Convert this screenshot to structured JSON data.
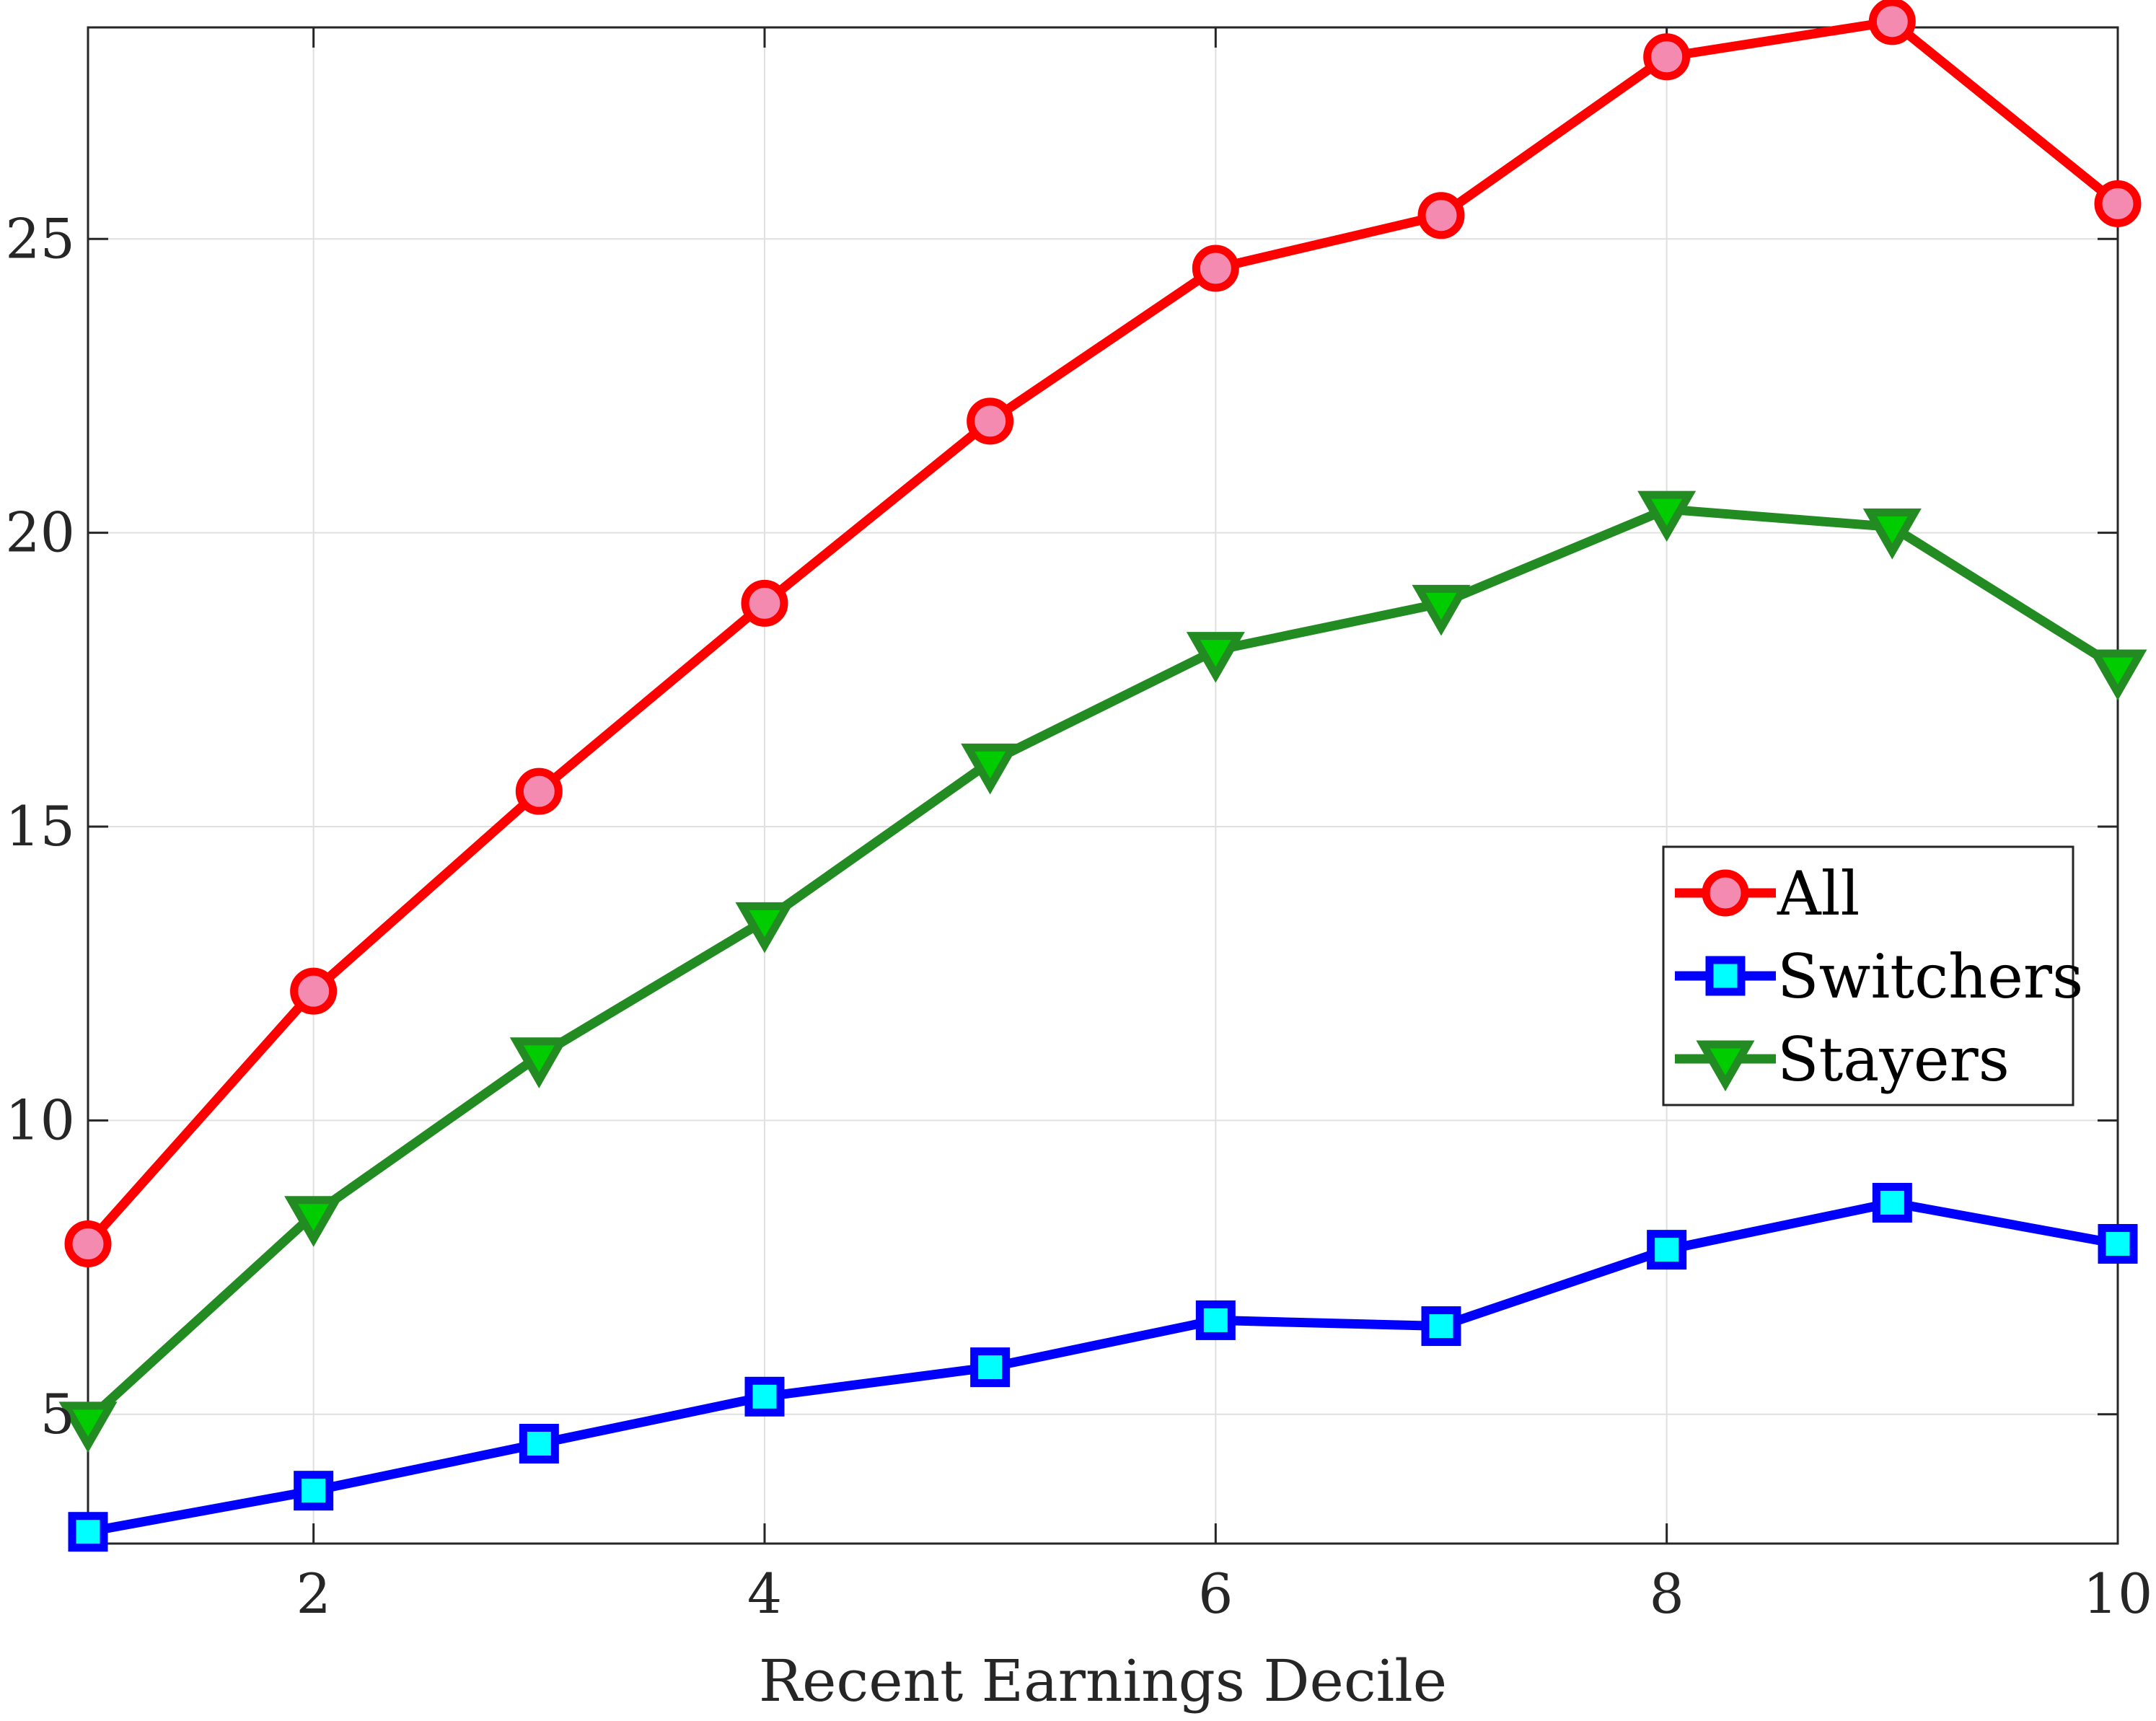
{
  "chart_data": {
    "type": "line",
    "xlabel": "Recent Earnings Decile",
    "ylabel": "",
    "xlim": [
      1,
      10
    ],
    "ylim": [
      2.8,
      28.6
    ],
    "xticks": [
      2,
      4,
      6,
      8,
      10
    ],
    "yticks": [
      5,
      10,
      15,
      20,
      25
    ],
    "grid": true,
    "legend_position": "center-right",
    "x": [
      1,
      2,
      3,
      4,
      5,
      6,
      7,
      8,
      9,
      10
    ],
    "series": [
      {
        "name": "All",
        "values": [
          7.9,
          12.2,
          15.6,
          18.8,
          21.9,
          24.5,
          25.4,
          28.1,
          28.7,
          25.6
        ],
        "color": "#ff0000",
        "marker": "circle",
        "marker_fill": "#f58ab0"
      },
      {
        "name": "Switchers",
        "values": [
          3.0,
          3.7,
          4.5,
          5.3,
          5.8,
          6.6,
          6.5,
          7.8,
          8.6,
          7.9
        ],
        "color": "#0000ff",
        "marker": "square",
        "marker_fill": "#00ffff"
      },
      {
        "name": "Stayers",
        "values": [
          4.9,
          8.4,
          11.1,
          13.4,
          16.1,
          18.0,
          18.8,
          20.4,
          20.1,
          17.7
        ],
        "color": "#228b22",
        "marker": "triangle-down",
        "marker_fill": "#00cc00"
      }
    ]
  }
}
